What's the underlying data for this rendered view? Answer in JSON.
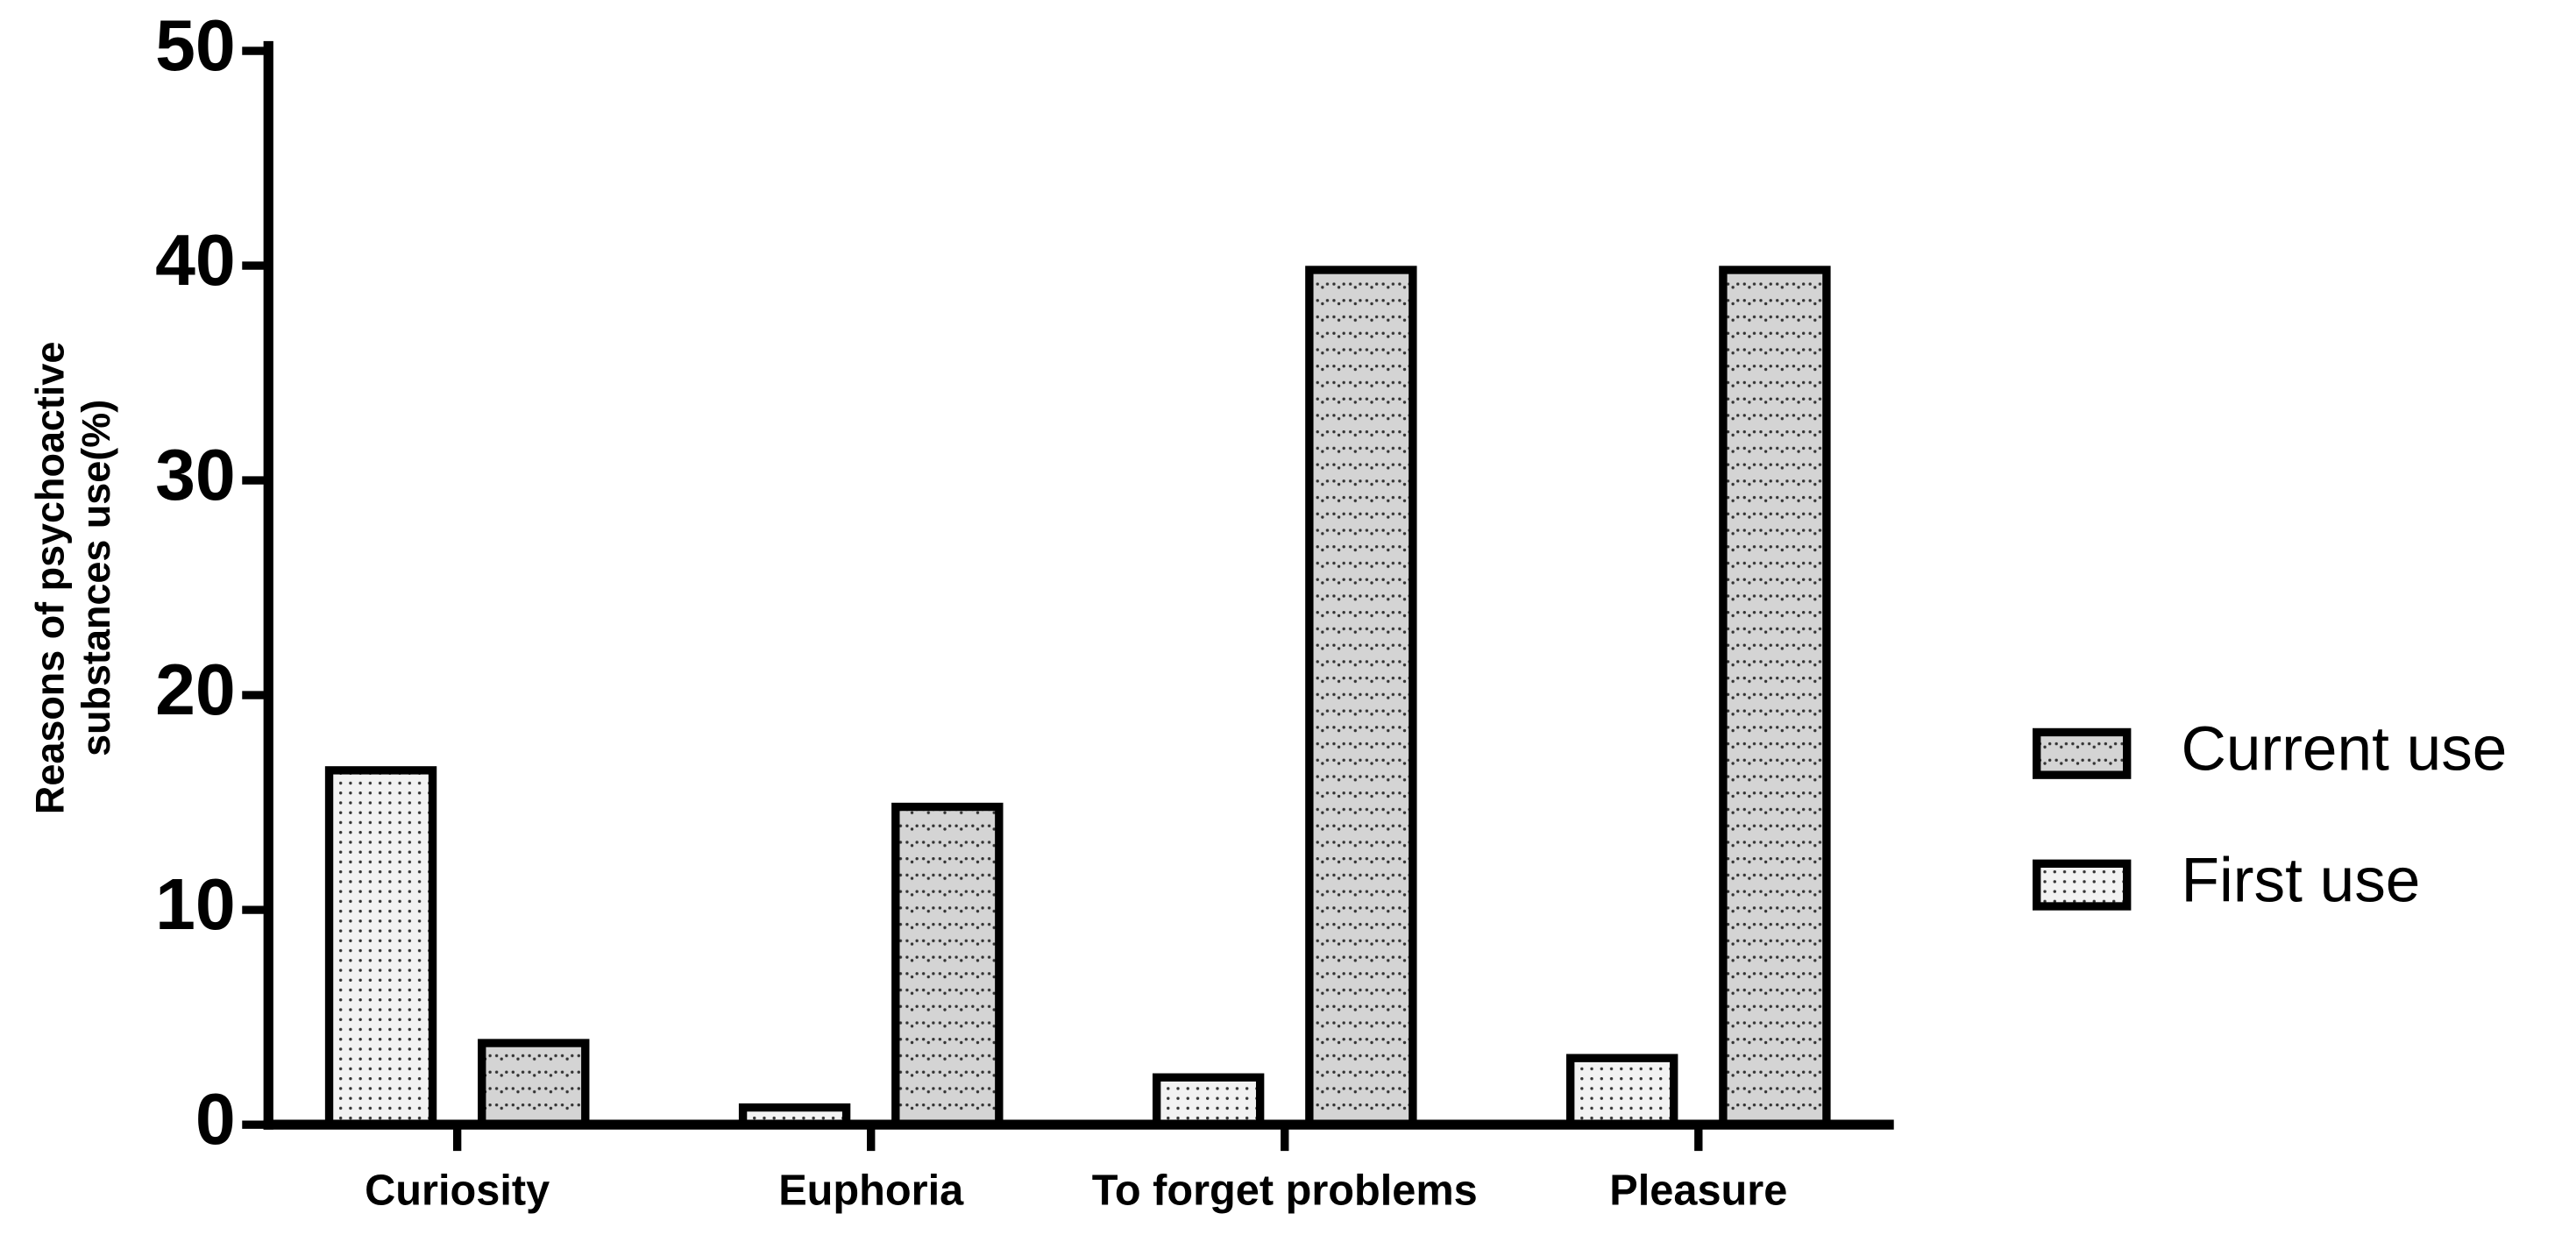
{
  "chart_data": {
    "type": "bar",
    "ylabel": [
      "Reasons of psychoactive",
      "substances use(%)"
    ],
    "categories": [
      "Curiosity",
      "Euphoria",
      "To forget problems",
      "Pleasure"
    ],
    "series": [
      {
        "name": "First use",
        "color": "#f2f2f2",
        "values": [
          16.5,
          0.8,
          2.2,
          3.1
        ]
      },
      {
        "name": "Current use",
        "color": "#d4d4d4",
        "values": [
          3.8,
          14.8,
          39.8,
          39.8
        ]
      }
    ],
    "ylim": [
      0,
      50
    ],
    "yticks": [
      0,
      10,
      20,
      30,
      40,
      50
    ]
  }
}
